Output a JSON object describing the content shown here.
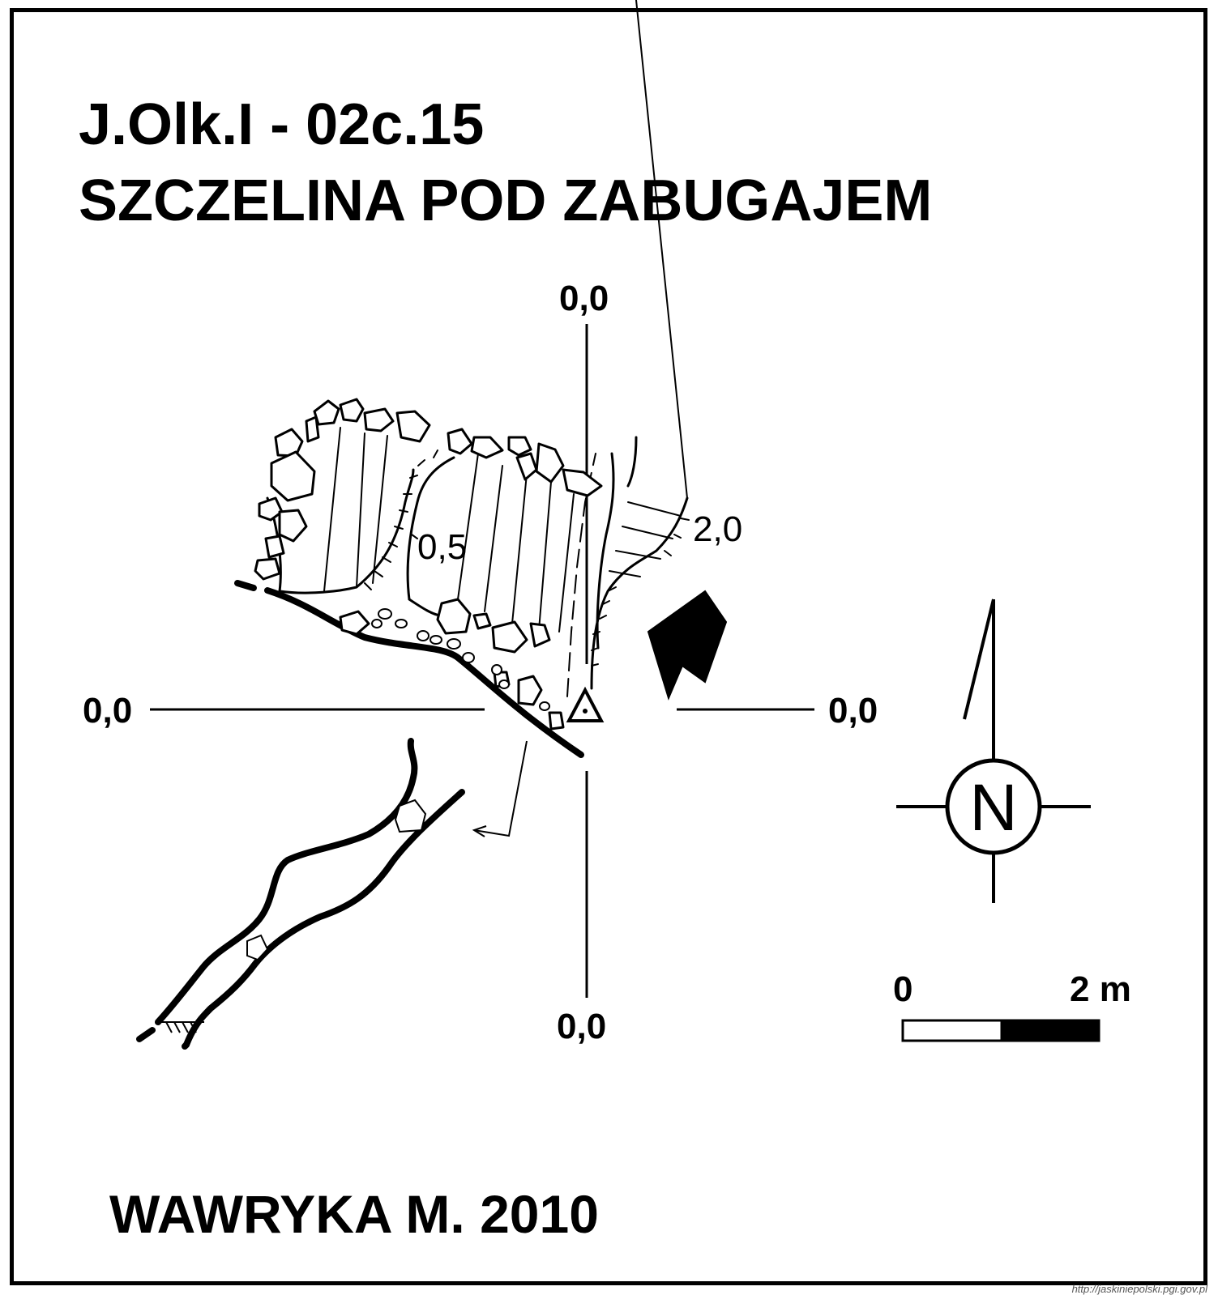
{
  "map": {
    "code": "J.Olk.I - 02c.15",
    "name": "SZCZELINA POD ZABUGAJEM",
    "axis_labels": {
      "top": "0,0",
      "left": "0,0",
      "right": "0,0",
      "bottom": "0,0"
    },
    "depth_labels": [
      "0,5",
      "2,0"
    ],
    "compass_letter": "N",
    "scale": {
      "start": "0",
      "end": "2 m"
    },
    "author": "WAWRYKA M.  2010",
    "source_url": "http://jaskiniepolski.pgi.gov.pl"
  },
  "colors": {
    "ink": "#000000",
    "paper": "#ffffff"
  }
}
